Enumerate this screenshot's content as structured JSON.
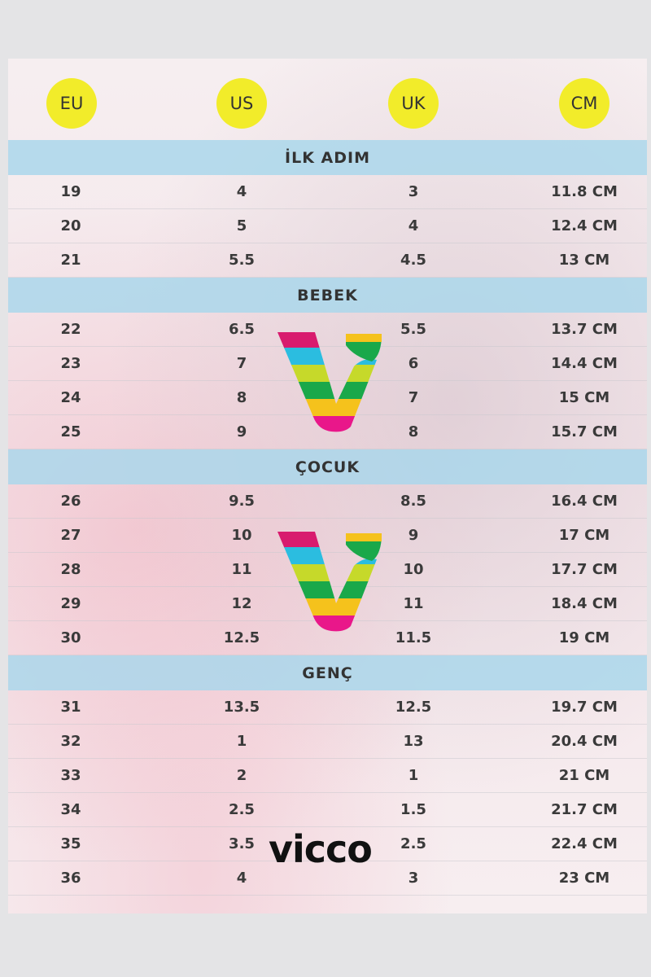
{
  "headers": [
    "EU",
    "US",
    "UK",
    "CM"
  ],
  "header_color": "#f2ec2a",
  "band_color": "#aad7eb",
  "brand": "vicco",
  "sections": [
    {
      "title": "İLK ADIM",
      "rows": [
        [
          "19",
          "4",
          "3",
          "11.8 CM"
        ],
        [
          "20",
          "5",
          "4",
          "12.4 CM"
        ],
        [
          "21",
          "5.5",
          "4.5",
          "13 CM"
        ]
      ]
    },
    {
      "title": "BEBEK",
      "rows": [
        [
          "22",
          "6.5",
          "5.5",
          "13.7 CM"
        ],
        [
          "23",
          "7",
          "6",
          "14.4 CM"
        ],
        [
          "24",
          "8",
          "7",
          "15 CM"
        ],
        [
          "25",
          "9",
          "8",
          "15.7 CM"
        ]
      ]
    },
    {
      "title": "ÇOCUK",
      "rows": [
        [
          "26",
          "9.5",
          "8.5",
          "16.4 CM"
        ],
        [
          "27",
          "10",
          "9",
          "17 CM"
        ],
        [
          "28",
          "11",
          "10",
          "17.7 CM"
        ],
        [
          "29",
          "12",
          "11",
          "18.4 CM"
        ],
        [
          "30",
          "12.5",
          "11.5",
          "19 CM"
        ]
      ]
    },
    {
      "title": "GENÇ",
      "rows": [
        [
          "31",
          "13.5",
          "12.5",
          "19.7 CM"
        ],
        [
          "32",
          "1",
          "13",
          "20.4 CM"
        ],
        [
          "33",
          "2",
          "1",
          "21 CM"
        ],
        [
          "34",
          "2.5",
          "1.5",
          "21.7 CM"
        ],
        [
          "35",
          "3.5",
          "2.5",
          "22.4 CM"
        ],
        [
          "36",
          "4",
          "3",
          "23 CM"
        ]
      ]
    }
  ]
}
